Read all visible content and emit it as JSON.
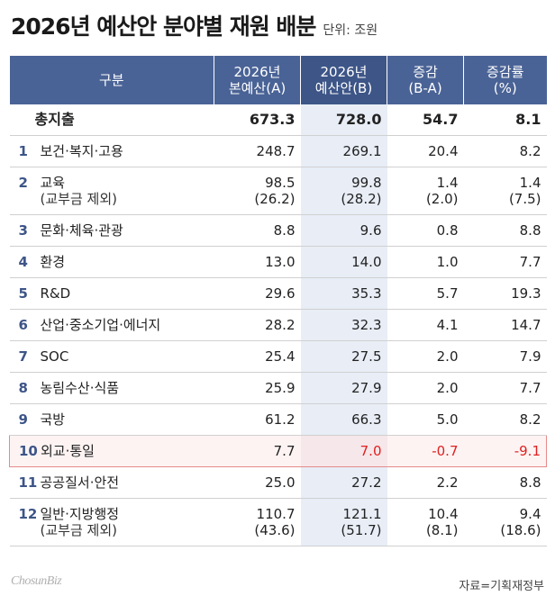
{
  "title": "2026년 예산안 분야별 재원 배분",
  "unit": "단위: 조원",
  "columns": [
    {
      "line1": "구분",
      "line2": ""
    },
    {
      "line1": "2026년",
      "line2": "본예산(A)"
    },
    {
      "line1": "2026년",
      "line2": "예산안(B)"
    },
    {
      "line1": "증감",
      "line2": "(B-A)"
    },
    {
      "line1": "증감률",
      "line2": "(%)"
    }
  ],
  "total": {
    "name": "총지출",
    "a": "673.3",
    "b": "728.0",
    "diff": "54.7",
    "rate": "8.1"
  },
  "rows": [
    {
      "no": "1",
      "name": "보건·복지·고용",
      "a": "248.7",
      "b": "269.1",
      "diff": "20.4",
      "rate": "8.2"
    },
    {
      "no": "2",
      "name": "교육",
      "sub": "(교부금 제외)",
      "a": "98.5",
      "a2": "(26.2)",
      "b": "99.8",
      "b2": "(28.2)",
      "diff": "1.4",
      "diff2": "(2.0)",
      "rate": "1.4",
      "rate2": "(7.5)"
    },
    {
      "no": "3",
      "name": "문화·체육·관광",
      "a": "8.8",
      "b": "9.6",
      "diff": "0.8",
      "rate": "8.8"
    },
    {
      "no": "4",
      "name": "환경",
      "a": "13.0",
      "b": "14.0",
      "diff": "1.0",
      "rate": "7.7"
    },
    {
      "no": "5",
      "name": "R&D",
      "a": "29.6",
      "b": "35.3",
      "diff": "5.7",
      "rate": "19.3"
    },
    {
      "no": "6",
      "name": "산업·중소기업·에너지",
      "a": "28.2",
      "b": "32.3",
      "diff": "4.1",
      "rate": "14.7"
    },
    {
      "no": "7",
      "name": "SOC",
      "a": "25.4",
      "b": "27.5",
      "diff": "2.0",
      "rate": "7.9"
    },
    {
      "no": "8",
      "name": "농림수산·식품",
      "a": "25.9",
      "b": "27.9",
      "diff": "2.0",
      "rate": "7.7"
    },
    {
      "no": "9",
      "name": "국방",
      "a": "61.2",
      "b": "66.3",
      "diff": "5.0",
      "rate": "8.2"
    },
    {
      "no": "10",
      "name": "외교·통일",
      "a": "7.7",
      "b": "7.0",
      "diff": "-0.7",
      "rate": "-9.1"
    },
    {
      "no": "11",
      "name": "공공질서·안전",
      "a": "25.0",
      "b": "27.2",
      "diff": "2.2",
      "rate": "8.8"
    },
    {
      "no": "12",
      "name": "일반·지방행정",
      "sub": "(교부금 제외)",
      "a": "110.7",
      "a2": "(43.6)",
      "b": "121.1",
      "b2": "(51.7)",
      "diff": "10.4",
      "diff2": "(8.1)",
      "rate": "9.4",
      "rate2": "(18.6)"
    }
  ],
  "chart_data": {
    "type": "table",
    "columns": [
      "구분",
      "2026년 본예산(A)",
      "2026년 예산안(B)",
      "증감(B-A)",
      "증감률(%)"
    ],
    "rows": [
      [
        "총지출",
        673.3,
        728.0,
        54.7,
        8.1
      ],
      [
        "보건·복지·고용",
        248.7,
        269.1,
        20.4,
        8.2
      ],
      [
        "교육",
        98.5,
        99.8,
        1.4,
        1.4
      ],
      [
        "교육 (교부금 제외)",
        26.2,
        28.2,
        2.0,
        7.5
      ],
      [
        "문화·체육·관광",
        8.8,
        9.6,
        0.8,
        8.8
      ],
      [
        "환경",
        13.0,
        14.0,
        1.0,
        7.7
      ],
      [
        "R&D",
        29.6,
        35.3,
        5.7,
        19.3
      ],
      [
        "산업·중소기업·에너지",
        28.2,
        32.3,
        4.1,
        14.7
      ],
      [
        "SOC",
        25.4,
        27.5,
        2.0,
        7.9
      ],
      [
        "농림수산·식품",
        25.9,
        27.9,
        2.0,
        7.7
      ],
      [
        "국방",
        61.2,
        66.3,
        5.0,
        8.2
      ],
      [
        "외교·통일",
        7.7,
        7.0,
        -0.7,
        -9.1
      ],
      [
        "공공질서·안전",
        25.0,
        27.2,
        2.2,
        8.8
      ],
      [
        "일반·지방행정",
        110.7,
        121.1,
        10.4,
        9.4
      ],
      [
        "일반·지방행정 (교부금 제외)",
        43.6,
        51.7,
        8.1,
        18.6
      ]
    ],
    "highlighted_row": "외교·통일",
    "highlight_color": "#e02020"
  },
  "footer": {
    "logo": "ChosunBiz",
    "source": "자료=기획재정부"
  },
  "colors": {
    "header": "#4a6396",
    "highlight_col": "#e8edf6",
    "negative": "#e02020"
  }
}
